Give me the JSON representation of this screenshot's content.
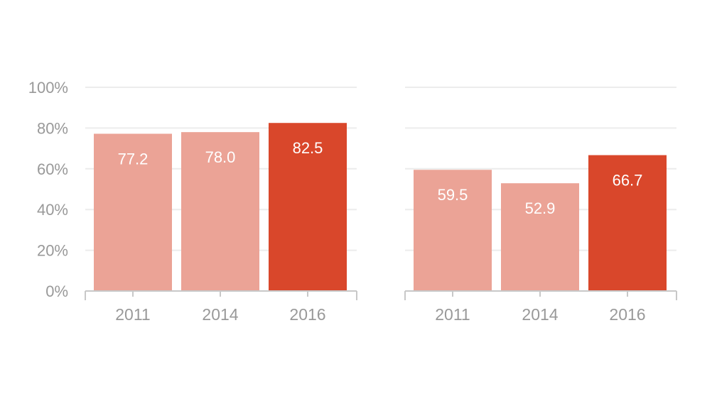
{
  "chart_data": [
    {
      "type": "bar",
      "title": "",
      "xlabel": "",
      "ylabel": "",
      "categories": [
        "2011",
        "2014",
        "2016"
      ],
      "values": [
        77.2,
        78.0,
        82.5
      ],
      "value_labels": [
        "77.2",
        "78.0",
        "82.5"
      ],
      "ylim": [
        0,
        100
      ],
      "yticks": [
        0,
        20,
        40,
        60,
        80,
        100
      ],
      "ytick_labels": [
        "0%",
        "20%",
        "40%",
        "60%",
        "80%",
        "100%"
      ],
      "show_ytick_labels": true,
      "grid": true,
      "legend": "none",
      "bar_colors": [
        "#eba396",
        "#eba396",
        "#d9472b"
      ]
    },
    {
      "type": "bar",
      "title": "",
      "xlabel": "",
      "ylabel": "",
      "categories": [
        "2011",
        "2014",
        "2016"
      ],
      "values": [
        59.5,
        52.9,
        66.7
      ],
      "value_labels": [
        "59.5",
        "52.9",
        "66.7"
      ],
      "ylim": [
        0,
        100
      ],
      "yticks": [
        0,
        20,
        40,
        60,
        80,
        100
      ],
      "ytick_labels": [],
      "show_ytick_labels": false,
      "grid": true,
      "legend": "none",
      "bar_colors": [
        "#eba396",
        "#eba396",
        "#d9472b"
      ]
    }
  ]
}
